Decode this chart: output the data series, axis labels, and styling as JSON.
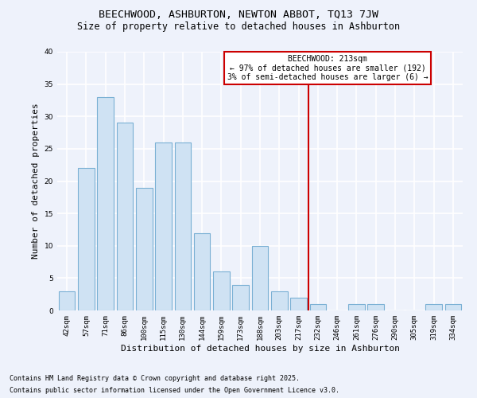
{
  "title_line1": "BEECHWOOD, ASHBURTON, NEWTON ABBOT, TQ13 7JW",
  "title_line2": "Size of property relative to detached houses in Ashburton",
  "xlabel": "Distribution of detached houses by size in Ashburton",
  "ylabel": "Number of detached properties",
  "categories": [
    "42sqm",
    "57sqm",
    "71sqm",
    "86sqm",
    "100sqm",
    "115sqm",
    "130sqm",
    "144sqm",
    "159sqm",
    "173sqm",
    "188sqm",
    "203sqm",
    "217sqm",
    "232sqm",
    "246sqm",
    "261sqm",
    "276sqm",
    "290sqm",
    "305sqm",
    "319sqm",
    "334sqm"
  ],
  "values": [
    3,
    22,
    33,
    29,
    19,
    26,
    26,
    12,
    6,
    4,
    10,
    3,
    2,
    1,
    0,
    1,
    1,
    0,
    0,
    1,
    1
  ],
  "bar_color": "#cfe2f3",
  "bar_edge_color": "#7ab0d4",
  "background_color": "#eef2fb",
  "grid_color": "#ffffff",
  "vline_x_index": 12.5,
  "vline_color": "#cc0000",
  "annotation_title": "BEECHWOOD: 213sqm",
  "annotation_line1": "← 97% of detached houses are smaller (192)",
  "annotation_line2": "3% of semi-detached houses are larger (6) →",
  "annotation_box_color": "#ffffff",
  "annotation_box_edge": "#cc0000",
  "ylim": [
    0,
    40
  ],
  "yticks": [
    0,
    5,
    10,
    15,
    20,
    25,
    30,
    35,
    40
  ],
  "footnote_line1": "Contains HM Land Registry data © Crown copyright and database right 2025.",
  "footnote_line2": "Contains public sector information licensed under the Open Government Licence v3.0.",
  "title_fontsize": 9.5,
  "subtitle_fontsize": 8.5,
  "axis_label_fontsize": 8,
  "tick_fontsize": 6.5,
  "annotation_fontsize": 7,
  "footnote_fontsize": 6
}
